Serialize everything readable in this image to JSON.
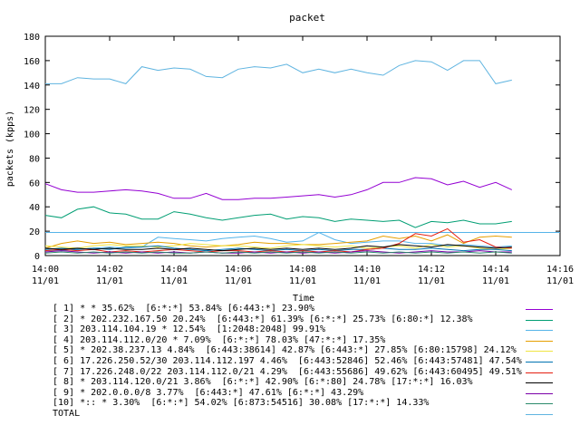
{
  "chart_data": {
    "type": "line",
    "title": "packet",
    "xlabel": "Time",
    "ylabel": "packets (kpps)",
    "ylim": [
      0,
      180
    ],
    "yticks": [
      0,
      20,
      40,
      60,
      80,
      100,
      120,
      140,
      160,
      180
    ],
    "xlim": [
      "14:00",
      "14:16"
    ],
    "xticks": [
      {
        "time": "14:00",
        "date": "11/01"
      },
      {
        "time": "14:02",
        "date": "11/01"
      },
      {
        "time": "14:04",
        "date": "11/01"
      },
      {
        "time": "14:06",
        "date": "11/01"
      },
      {
        "time": "14:08",
        "date": "11/01"
      },
      {
        "time": "14:10",
        "date": "11/01"
      },
      {
        "time": "14:12",
        "date": "11/01"
      },
      {
        "time": "14:14",
        "date": "11/01"
      },
      {
        "time": "14:16",
        "date": "11/01"
      }
    ],
    "reference_line_value": 19,
    "x": [
      "14:00:00",
      "14:00:30",
      "14:01:00",
      "14:01:30",
      "14:02:00",
      "14:02:30",
      "14:03:00",
      "14:03:30",
      "14:04:00",
      "14:04:30",
      "14:05:00",
      "14:05:30",
      "14:06:00",
      "14:06:30",
      "14:07:00",
      "14:07:30",
      "14:08:00",
      "14:08:30",
      "14:09:00",
      "14:09:30",
      "14:10:00",
      "14:10:30",
      "14:11:00",
      "14:11:30",
      "14:12:00",
      "14:12:30",
      "14:13:00",
      "14:13:30",
      "14:14:00",
      "14:14:30"
    ],
    "series": [
      {
        "name": "[ 1] * * 35.62%  [6:*:*] 53.84% [6:443:*] 23.90%",
        "color": "#9400d3",
        "values": [
          59,
          54,
          52,
          52,
          53,
          54,
          53,
          51,
          47,
          47,
          51,
          46,
          46,
          47,
          47,
          48,
          49,
          50,
          48,
          50,
          54,
          60,
          60,
          64,
          63,
          58,
          61,
          56,
          60,
          54
        ]
      },
      {
        "name": "[ 2] * 202.232.167.50 20.24%  [6:443:*] 61.39% [6:*:*] 25.73% [6:80:*] 12.38%",
        "color": "#009e73",
        "values": [
          33,
          31,
          38,
          40,
          35,
          34,
          30,
          30,
          36,
          34,
          31,
          29,
          31,
          33,
          34,
          30,
          32,
          31,
          28,
          30,
          29,
          28,
          29,
          23,
          28,
          27,
          29,
          26,
          26,
          28
        ]
      },
      {
        "name": "[ 3] 203.114.104.19 * 12.54%  [1:2048:2048] 99.91%",
        "color": "#56b4e9",
        "values": [
          4,
          4,
          5,
          6,
          7,
          6,
          7,
          15,
          14,
          13,
          12,
          14,
          15,
          16,
          14,
          11,
          12,
          19,
          13,
          10,
          11,
          12,
          12,
          10,
          10,
          8,
          9,
          8,
          7,
          8
        ]
      },
      {
        "name": "[ 4] 203.114.112.0/20 * 7.09%  [6:*:*] 78.03% [47:*:*] 17.35%",
        "color": "#e69f00",
        "values": [
          6,
          10,
          12,
          10,
          11,
          9,
          10,
          11,
          10,
          8,
          7,
          8,
          9,
          11,
          10,
          10,
          9,
          9,
          10,
          11,
          12,
          16,
          14,
          16,
          12,
          17,
          10,
          15,
          16,
          15
        ]
      },
      {
        "name": "[ 5] * 202.38.237.13 4.84%  [6:443:38614] 42.87% [6:443:*] 27.85% [6:80:15798] 24.12%",
        "color": "#f0e442",
        "values": [
          8,
          7,
          6,
          8,
          9,
          8,
          8,
          7,
          8,
          10,
          9,
          8,
          8,
          7,
          6,
          8,
          9,
          8,
          7,
          8,
          6,
          7,
          8,
          6,
          9,
          7,
          8,
          6,
          5,
          6
        ]
      },
      {
        "name": "[ 6] 17.226.250.52/30 203.114.112.197 4.46%  [6:443:52846] 52.46% [6:443:57481] 47.54%",
        "color": "#0072b2",
        "values": [
          5,
          6,
          5,
          6,
          5,
          7,
          7,
          8,
          6,
          5,
          4,
          5,
          6,
          5,
          4,
          5,
          4,
          5,
          4,
          5,
          5,
          6,
          5,
          5,
          6,
          5,
          4,
          5,
          5,
          4
        ]
      },
      {
        "name": "[ 7] 17.226.248.0/22 203.114.112.0/21 4.29%  [6:443:55686] 49.62% [6:443:60495] 49.51%",
        "color": "#e51e10",
        "values": [
          4,
          5,
          4,
          5,
          3,
          4,
          3,
          4,
          5,
          4,
          3,
          4,
          4,
          3,
          4,
          3,
          4,
          3,
          4,
          3,
          5,
          6,
          10,
          18,
          16,
          22,
          11,
          13,
          7,
          6
        ]
      },
      {
        "name": "[ 8] * 203.114.120.0/21 3.86%  [6:*:*] 42.90% [6:*:80] 24.78% [17:*:*] 16.03%",
        "color": "#000000",
        "values": [
          6,
          5,
          6,
          5,
          6,
          5,
          5,
          6,
          5,
          6,
          5,
          4,
          5,
          6,
          5,
          6,
          5,
          6,
          5,
          6,
          8,
          7,
          9,
          8,
          7,
          9,
          8,
          7,
          6,
          7
        ]
      },
      {
        "name": "[ 9] * 202.0.0.0/8 3.77%  [6:443:*] 47.61% [6:*:*] 43.29%",
        "color": "#7b00a8",
        "values": [
          3,
          4,
          3,
          2,
          3,
          2,
          3,
          2,
          3,
          2,
          3,
          2,
          2,
          3,
          2,
          3,
          2,
          3,
          2,
          3,
          4,
          3,
          2,
          3,
          4,
          3,
          3,
          4,
          3,
          3
        ]
      },
      {
        "name": "[10] *:: * 3.30%  [6:*:*] 54.02% [6:873:54516] 30.08% [17:*:*] 14.33%",
        "color": "#2b8a6b",
        "values": [
          2,
          3,
          2,
          3,
          2,
          3,
          2,
          3,
          2,
          2,
          3,
          2,
          3,
          2,
          3,
          2,
          3,
          2,
          3,
          2,
          3,
          2,
          3,
          2,
          3,
          2,
          3,
          2,
          3,
          2
        ]
      },
      {
        "name": "TOTAL",
        "color": "#5fb4e0",
        "values": [
          141,
          141,
          146,
          145,
          145,
          141,
          155,
          152,
          154,
          153,
          147,
          146,
          153,
          155,
          154,
          157,
          150,
          153,
          150,
          153,
          150,
          148,
          156,
          160,
          159,
          152,
          160,
          160,
          141,
          144
        ]
      }
    ]
  }
}
